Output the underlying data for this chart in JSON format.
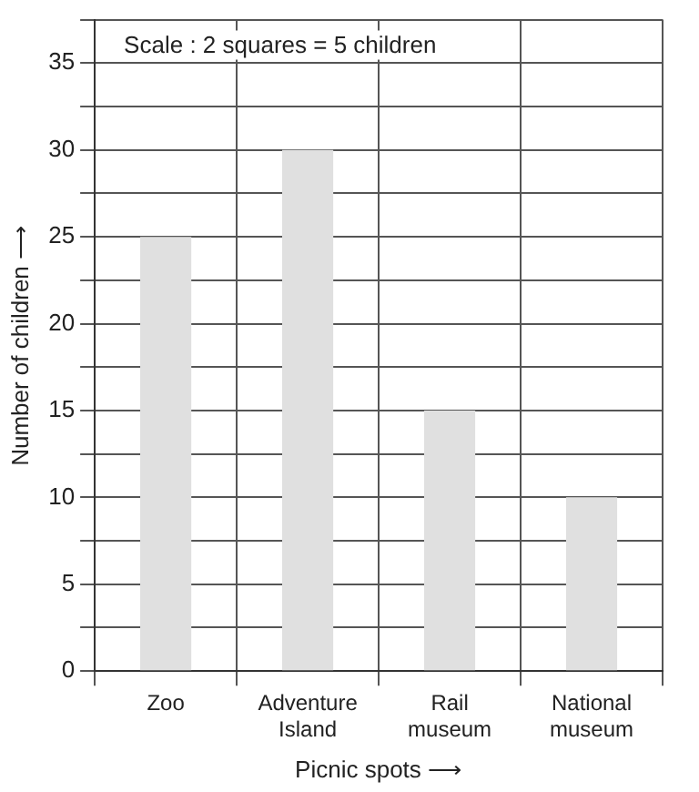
{
  "chart_data": {
    "type": "bar",
    "categories": [
      "Zoo",
      "Adventure Island",
      "Rail museum",
      "National museum"
    ],
    "values": [
      25,
      30,
      15,
      10
    ],
    "color": "#e0e0e0",
    "ylim": [
      0,
      37.5
    ],
    "yticks": [
      0,
      {
        "value": 2.5,
        "label": null
      },
      5,
      {
        "value": 7.5,
        "label": null
      },
      10,
      {
        "value": 12.5,
        "label": null
      },
      15,
      {
        "value": 17.5,
        "label": null
      },
      20,
      {
        "value": 22.5,
        "label": null
      },
      25,
      {
        "value": 27.5,
        "label": null
      },
      30,
      {
        "value": 32.5,
        "label": null
      },
      35,
      {
        "value": 37.5,
        "label": null
      }
    ],
    "xlabel": "Picnic spots ⟶",
    "ylabel": "Number of children ⟶",
    "grid": true,
    "annotations": [
      "Scale : 2 squares = 5 children"
    ]
  }
}
